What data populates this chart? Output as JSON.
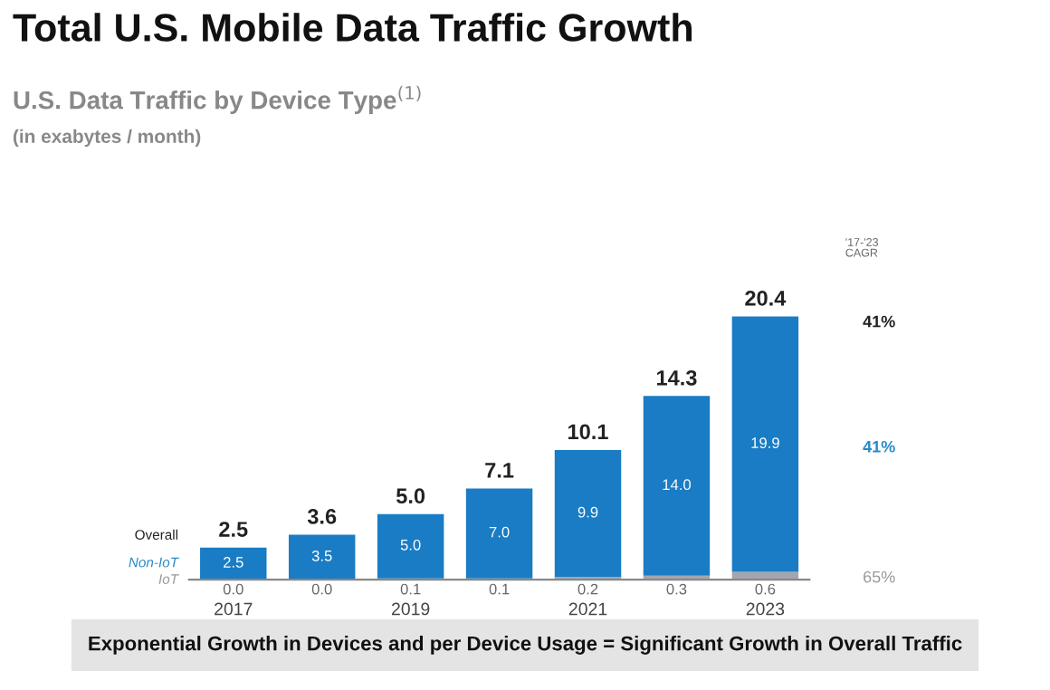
{
  "chart_data": {
    "type": "bar",
    "title": "Total U.S. Mobile Data Traffic Growth",
    "subtitle": "U.S. Data Traffic by Device Type$^{(1)}$",
    "categories": [
      "2017",
      null,
      "2019",
      null,
      "2021",
      null,
      "2023"
    ],
    "stacked": true,
    "series": [
      {
        "name": "IoT",
        "color": "#a3a6ad",
        "values": [
          0.0,
          0.0,
          0.1,
          0.1,
          0.2,
          0.3,
          0.6
        ],
        "value_labels": [
          "0.0",
          "0.0",
          "0.1",
          "0.1",
          "0.2",
          "0.3",
          "0.6"
        ]
      },
      {
        "name": "Non-IoT",
        "color": "#1a7cc4",
        "values": [
          2.5,
          3.5,
          5.0,
          7.0,
          9.9,
          14.0,
          19.9
        ],
        "value_labels": [
          "2.5",
          "3.5",
          "5.0",
          "7.0",
          "9.9",
          "14.0",
          "19.9"
        ]
      }
    ],
    "totals": [
      "2.5",
      "3.6",
      "5.0",
      "7.1",
      "10.1",
      "14.3",
      "20.4"
    ],
    "tick_labels": "x",
    "grid": false,
    "legend": false,
    "annotations": [
      "(in exabytes / month)",
      "Overall",
      "'17-'23\nCAGR",
      "41%",
      "41%",
      "65%",
      "Exponential Growth in Devices and per Device Usage = Significant Growth in Overall Traffic"
    ]
  }
}
